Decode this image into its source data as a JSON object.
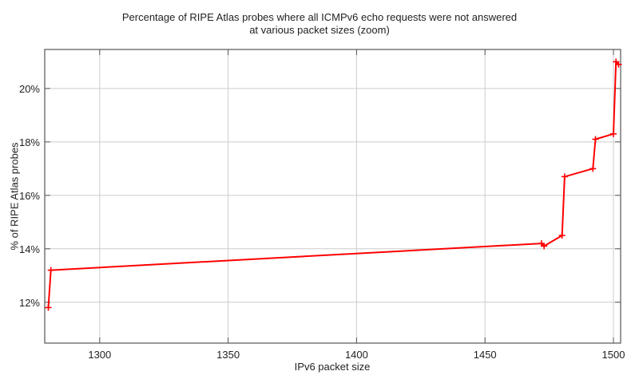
{
  "chart_data": {
    "type": "line",
    "title": "Percentage of RIPE Atlas probes where all ICMPv6 echo requests were not answered at various packet sizes (zoom)",
    "title_lines": [
      "Percentage of RIPE Atlas probes where all ICMPv6 echo requests were not answered",
      "at various packet sizes (zoom)"
    ],
    "xlabel": "IPv6 packet size",
    "ylabel": "% of RIPE Atlas probes",
    "xlim": [
      1278.6,
      1502.8
    ],
    "ylim": [
      10.47,
      21.46
    ],
    "xticks": [
      1300,
      1350,
      1400,
      1450,
      1500
    ],
    "yticks": [
      12,
      14,
      16,
      18,
      20
    ],
    "ytick_labels": [
      "12%",
      "14%",
      "16%",
      "18%",
      "20%"
    ],
    "grid": true,
    "legend": null,
    "series": [
      {
        "name": "unanswered",
        "color": "#ff0000",
        "marker": "+",
        "x": [
          1280,
          1281,
          1472,
          1473,
          1480,
          1481,
          1492,
          1493,
          1500,
          1501,
          1502
        ],
        "y": [
          11.8,
          13.2,
          14.2,
          14.1,
          14.5,
          16.7,
          17.0,
          18.1,
          18.3,
          21.0,
          20.9
        ]
      }
    ]
  },
  "colors": {
    "line": "#ff0000",
    "grid": "#cccccc",
    "axis": "#555555"
  }
}
